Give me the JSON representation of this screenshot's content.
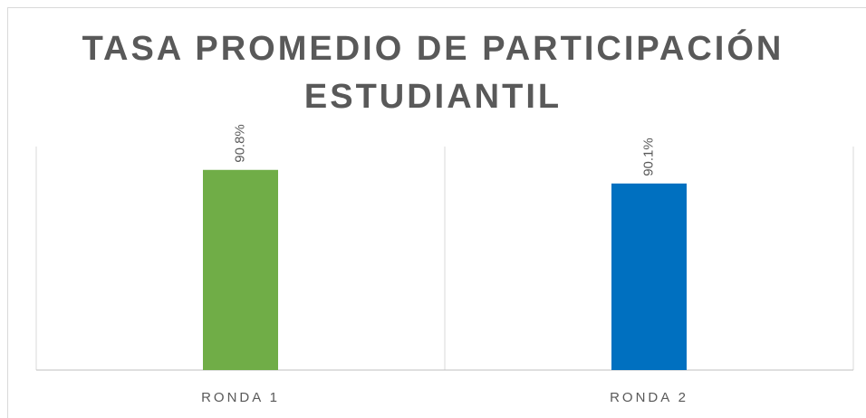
{
  "chart_data": {
    "type": "bar",
    "title": "TASA PROMEDIO DE PARTICIPACIÓN ESTUDIANTIL",
    "categories": [
      "RONDA 1",
      "RONDA 2"
    ],
    "values": [
      90.8,
      90.1
    ],
    "value_labels": [
      "90.8%",
      "90.1%"
    ],
    "colors": [
      "#70ad47",
      "#0070c0"
    ],
    "ylim": [
      80.5,
      92
    ]
  }
}
